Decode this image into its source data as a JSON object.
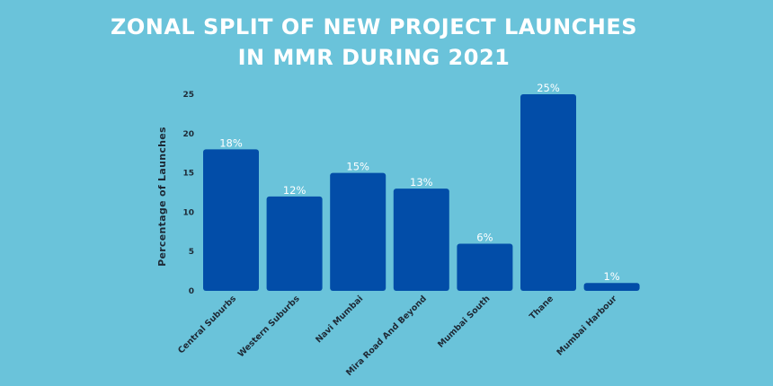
{
  "colors": {
    "background": "#6ac3da",
    "bar": "#024da8",
    "title": "#ffffff",
    "axis_text": "#1e2a36",
    "data_label": "#ffffff"
  },
  "chart_data": {
    "type": "bar",
    "title_lines": [
      "ZONAL SPLIT OF NEW PROJECT LAUNCHES",
      "IN MMR DURING 2021"
    ],
    "xlabel": "",
    "ylabel": "Percentage of Launches",
    "categories": [
      "Central Suburbs",
      "Western Suburbs",
      "Navi Mumbai",
      "Mira Road And Beyond",
      "Mumbai South",
      "Thane",
      "Mumbai Harbour"
    ],
    "values": [
      18,
      12,
      15,
      13,
      6,
      25,
      1
    ],
    "data_labels": [
      "18%",
      "12%",
      "15%",
      "13%",
      "6%",
      "25%",
      "1%"
    ],
    "ylim": [
      0,
      25
    ],
    "yticks": [
      0,
      5,
      10,
      15,
      20,
      25
    ],
    "grid": false,
    "legend": "none"
  }
}
